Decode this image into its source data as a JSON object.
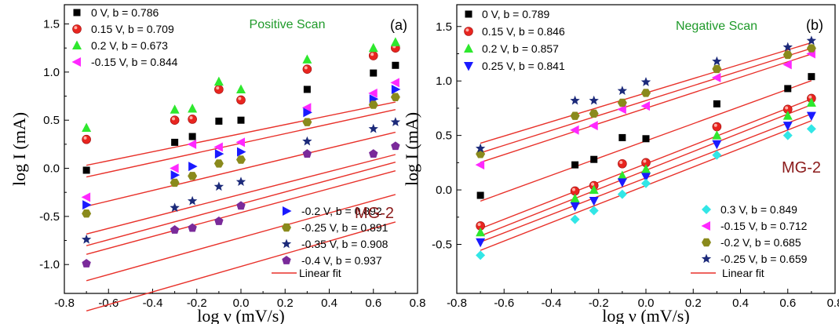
{
  "chart_data": [
    {
      "type": "scatter",
      "panel_label": "(a)",
      "scan_title": "Positive Scan",
      "sample_label": "MG-2",
      "xlabel": "log ν (mV/s)",
      "ylabel": "log I (mA)",
      "xlim": [
        -0.8,
        0.8
      ],
      "ylim": [
        -1.3,
        1.7
      ],
      "x_ticks": [
        "-0.8",
        "-0.6",
        "-0.4",
        "-0.2",
        "0.0",
        "0.2",
        "0.4",
        "0.6",
        "0.8"
      ],
      "y_ticks": [
        "-1.0",
        "-0.5",
        "0.0",
        "0.5",
        "1.0",
        "1.5"
      ],
      "x_tick_values": [
        -0.8,
        -0.6,
        -0.4,
        -0.2,
        0.0,
        0.2,
        0.4,
        0.6,
        0.8
      ],
      "y_tick_values": [
        -1.0,
        -0.5,
        0.0,
        0.5,
        1.0,
        1.5
      ],
      "x": [
        -0.7,
        -0.3,
        -0.22,
        -0.1,
        0.0,
        0.3,
        0.6,
        0.7
      ],
      "fit_label": "Linear fit",
      "fit_color": "#e8312a",
      "legend_top": [
        "0 V, b = 0.786",
        "0.15 V, b = 0.709",
        "0.2 V, b = 0.673",
        "-0.15 V, b = 0.844"
      ],
      "legend_bottom": [
        "-0.2 V, b = 0.892",
        "-0.25 V, b = 0.891",
        "-0.35 V, b = 0.908",
        "-0.4 V, b = 0.937"
      ],
      "series": [
        {
          "label": "0 V, b = 0.786",
          "marker": "square",
          "color": "#000000",
          "values": [
            -0.02,
            0.27,
            0.33,
            0.49,
            0.5,
            0.82,
            0.99,
            1.07
          ],
          "fit": [
            -0.01,
            0.55
          ]
        },
        {
          "label": "0.15 V, b = 0.709",
          "marker": "sphere",
          "color": "#e8251f",
          "values": [
            0.3,
            0.5,
            0.51,
            0.82,
            0.71,
            1.03,
            1.17,
            1.25
          ],
          "fit": [
            0.26,
            0.5
          ]
        },
        {
          "label": "0.2 V, b = 0.673",
          "marker": "triangle-up",
          "color": "#2ee82e",
          "values": [
            0.42,
            0.61,
            0.62,
            0.9,
            0.82,
            1.13,
            1.25,
            1.31
          ],
          "fit": [
            0.36,
            0.47
          ]
        },
        {
          "label": "-0.15 V, b = 0.844",
          "marker": "triangle-left",
          "color": "#ff28ff",
          "values": [
            -0.3,
            0.0,
            0.25,
            0.22,
            0.27,
            0.63,
            0.78,
            0.89
          ],
          "fit": [
            -0.27,
            0.59
          ]
        },
        {
          "label": "-0.2 V, b = 0.892",
          "marker": "triangle-right",
          "color": "#1a1aff",
          "values": [
            -0.38,
            -0.07,
            0.02,
            0.15,
            0.17,
            0.58,
            0.72,
            0.82
          ],
          "fit": [
            -0.37,
            0.62
          ]
        },
        {
          "label": "-0.25 V, b = 0.891",
          "marker": "hexagon",
          "color": "#8a8a1c",
          "values": [
            -0.47,
            -0.15,
            -0.08,
            0.05,
            0.09,
            0.48,
            0.66,
            0.74
          ],
          "fit": [
            -0.46,
            0.62
          ]
        },
        {
          "label": "-0.35 V, b = 0.908",
          "marker": "star",
          "color": "#1c2a7a",
          "values": [
            -0.74,
            -0.41,
            -0.34,
            -0.19,
            -0.14,
            0.28,
            0.41,
            0.48
          ],
          "fit": [
            -0.72,
            0.64
          ]
        },
        {
          "label": "-0.4 V, b = 0.937",
          "marker": "pentagon",
          "color": "#7a2a9a",
          "values": [
            -0.99,
            -0.64,
            -0.62,
            -0.55,
            -0.39,
            0.15,
            0.15,
            0.23
          ],
          "fit": [
            -1.02,
            0.66
          ]
        }
      ]
    },
    {
      "type": "scatter",
      "panel_label": "(b)",
      "scan_title": "Negative Scan",
      "sample_label": "MG-2",
      "xlabel": "log ν (mV/s)",
      "ylabel": "log I (mA)",
      "xlim": [
        -0.8,
        0.8
      ],
      "ylim": [
        -0.95,
        1.7
      ],
      "x_ticks": [
        "-0.8",
        "-0.6",
        "-0.4",
        "-0.2",
        "0.0",
        "0.2",
        "0.4",
        "0.6",
        "0.8"
      ],
      "y_ticks": [
        "-0.5",
        "0.0",
        "0.5",
        "1.0",
        "1.5"
      ],
      "x_tick_values": [
        -0.8,
        -0.6,
        -0.4,
        -0.2,
        0.0,
        0.2,
        0.4,
        0.6,
        0.8
      ],
      "y_tick_values": [
        -0.5,
        0.0,
        0.5,
        1.0,
        1.5
      ],
      "x": [
        -0.7,
        -0.3,
        -0.22,
        -0.1,
        0.0,
        0.3,
        0.6,
        0.7
      ],
      "fit_label": "Linear fit",
      "fit_color": "#e8312a",
      "legend_top": [
        "0 V, b = 0.789",
        "0.15 V, b = 0.846",
        "0.2 V, b = 0.857",
        "0.25 V, b = 0.841"
      ],
      "legend_bottom": [
        "0.3 V, b = 0.849",
        "-0.15 V, b = 0.712",
        "-0.2 V, b = 0.685",
        "-0.25 V, b = 0.659"
      ],
      "series": [
        {
          "label": "0 V, b = 0.789",
          "marker": "square",
          "color": "#000000",
          "values": [
            -0.05,
            0.23,
            0.28,
            0.48,
            0.47,
            0.79,
            0.93,
            1.04
          ],
          "fit": [
            0.45,
            0.79
          ]
        },
        {
          "label": "0.15 V, b = 0.846",
          "marker": "sphere",
          "color": "#e8251f",
          "values": [
            -0.33,
            -0.01,
            0.04,
            0.24,
            0.25,
            0.58,
            0.74,
            0.84
          ],
          "fit": [
            0.24,
            0.85
          ]
        },
        {
          "label": "0.2 V, b = 0.857",
          "marker": "triangle-up",
          "color": "#2ee82e",
          "values": [
            -0.39,
            -0.08,
            0.0,
            0.13,
            0.19,
            0.5,
            0.68,
            0.8
          ],
          "fit": [
            0.18,
            0.86
          ]
        },
        {
          "label": "0.25 V, b = 0.841",
          "marker": "triangle-down",
          "color": "#1a1aff",
          "values": [
            -0.48,
            -0.15,
            -0.1,
            0.07,
            0.12,
            0.42,
            0.59,
            0.68
          ],
          "fit": [
            0.11,
            0.84
          ]
        },
        {
          "label": "0.3 V, b = 0.849",
          "marker": "diamond",
          "color": "#32e6e6",
          "values": [
            -0.6,
            -0.27,
            -0.19,
            -0.04,
            0.06,
            0.32,
            0.5,
            0.56
          ],
          "fit": [
            0.04,
            0.85
          ]
        },
        {
          "label": "-0.15 V, b = 0.712",
          "marker": "triangle-left",
          "color": "#ff28ff",
          "values": [
            0.23,
            0.55,
            0.59,
            0.74,
            0.77,
            1.03,
            1.15,
            1.25
          ],
          "fit": [
            0.75,
            0.71
          ]
        },
        {
          "label": "-0.2 V, b = 0.685",
          "marker": "hexagon",
          "color": "#8a8a1c",
          "values": [
            0.33,
            0.68,
            0.7,
            0.8,
            0.89,
            1.11,
            1.24,
            1.3
          ],
          "fit": [
            0.82,
            0.685
          ]
        },
        {
          "label": "-0.25 V, b = 0.659",
          "marker": "star",
          "color": "#1c2a7a",
          "values": [
            0.38,
            0.82,
            0.82,
            0.91,
            0.99,
            1.18,
            1.31,
            1.37
          ],
          "fit": [
            0.89,
            0.659
          ]
        }
      ]
    }
  ]
}
